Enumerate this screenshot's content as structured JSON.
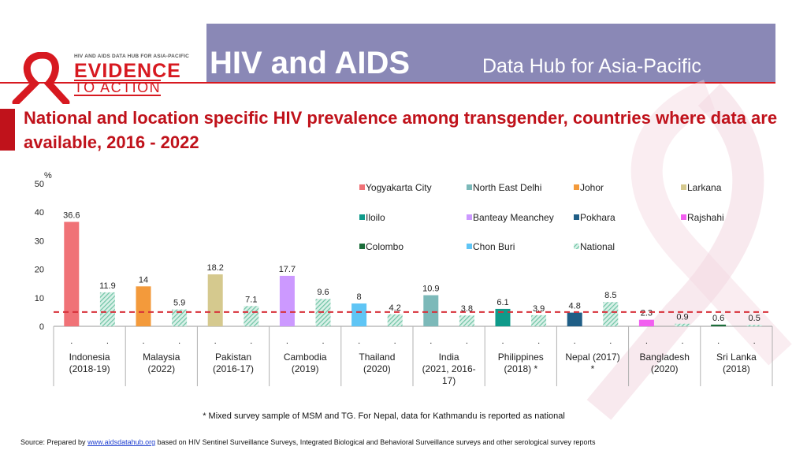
{
  "header": {
    "logo_top": "HIV AND AIDS DATA HUB FOR ASIA-PACIFIC",
    "logo_line1": "EVIDENCE",
    "logo_line2": "TO ACTION",
    "title": "HIV and AIDS",
    "subtitle": "Data Hub for Asia-Pacific"
  },
  "colors": {
    "brand_red": "#d71920",
    "header_bg": "#8a88b6",
    "national_dash_line": "#d7303a"
  },
  "chart_data": {
    "type": "bar",
    "title": "National and location specific HIV prevalence among transgender, countries where data are available, 2016 - 2022",
    "ylabel": "%",
    "ylim": [
      0,
      50
    ],
    "yticks": [
      0,
      10,
      20,
      30,
      40,
      50
    ],
    "grid": false,
    "legend_position": "top-right",
    "reference_line": 5,
    "groups": [
      {
        "label": "Indonesia (2018-19)",
        "bars": [
          {
            "series": "Yogyakarta City",
            "value": 36.6,
            "label": "36.6",
            "tick": "."
          },
          {
            "series": "National",
            "value": 11.9,
            "label": "11.9",
            "tick": "."
          }
        ]
      },
      {
        "label": "Malaysia (2022)",
        "bars": [
          {
            "series": "Johor",
            "value": 14,
            "label": "14",
            "tick": "."
          },
          {
            "series": "National",
            "value": 5.9,
            "label": "5.9",
            "tick": "."
          }
        ]
      },
      {
        "label": "Pakistan (2016-17)",
        "bars": [
          {
            "series": "Larkana",
            "value": 18.2,
            "label": "18.2",
            "tick": "."
          },
          {
            "series": "National",
            "value": 7.1,
            "label": "7.1",
            "tick": "."
          }
        ]
      },
      {
        "label": "Cambodia (2019)",
        "bars": [
          {
            "series": "Banteay Meanchey",
            "value": 17.7,
            "label": "17.7",
            "tick": "."
          },
          {
            "series": "National",
            "value": 9.6,
            "label": "9.6",
            "tick": "."
          }
        ]
      },
      {
        "label": "Thailand (2020)",
        "bars": [
          {
            "series": "Chon Buri",
            "value": 8,
            "label": "8",
            "tick": "."
          },
          {
            "series": "National",
            "value": 4.2,
            "label": "4.2",
            "tick": "."
          }
        ]
      },
      {
        "label": "India (2021, 2016-17)",
        "bars": [
          {
            "series": "North East Delhi",
            "value": 10.9,
            "label": "10.9",
            "tick": "."
          },
          {
            "series": "National",
            "value": 3.8,
            "label": "3.8",
            "tick": "."
          }
        ]
      },
      {
        "label": "Philippines (2018) *",
        "bars": [
          {
            "series": "Iloilo",
            "value": 6.1,
            "label": "6.1",
            "tick": "."
          },
          {
            "series": "National",
            "value": 3.9,
            "label": "3.9",
            "tick": "."
          }
        ]
      },
      {
        "label": "Nepal (2017) *",
        "bars": [
          {
            "series": "Pokhara",
            "value": 4.8,
            "label": "4.8",
            "tick": "."
          },
          {
            "series": "National",
            "value": 8.5,
            "label": "8.5",
            "tick": "."
          }
        ]
      },
      {
        "label": "Bangladesh (2020)",
        "bars": [
          {
            "series": "Rajshahi",
            "value": 2.3,
            "label": "2.3",
            "tick": "."
          },
          {
            "series": "National",
            "value": 0.9,
            "label": "0.9",
            "tick": "."
          }
        ]
      },
      {
        "label": "Sri Lanka (2018)",
        "bars": [
          {
            "series": "Colombo",
            "value": 0.6,
            "label": "0.6",
            "tick": "."
          },
          {
            "series": "National",
            "value": 0.5,
            "label": "0.5",
            "tick": "."
          }
        ]
      }
    ],
    "series": [
      {
        "name": "Yogyakarta City",
        "color": "#f07277"
      },
      {
        "name": "North East Delhi",
        "color": "#7cb9b9"
      },
      {
        "name": "Johor",
        "color": "#f39a3b"
      },
      {
        "name": "Larkana",
        "color": "#d5c98e"
      },
      {
        "name": "Iloilo",
        "color": "#0f9a8a"
      },
      {
        "name": "Banteay Meanchey",
        "color": "#cc99ff"
      },
      {
        "name": "Pokhara",
        "color": "#1f5e86"
      },
      {
        "name": "Rajshahi",
        "color": "#f25ff0"
      },
      {
        "name": "Colombo",
        "color": "#1b6d3a"
      },
      {
        "name": "Chon Buri",
        "color": "#5fc5f5"
      },
      {
        "name": "National",
        "color": "#6dc3a4",
        "pattern": "hatched"
      }
    ]
  },
  "footnote": "* Mixed survey sample of MSM and TG. For Nepal, data for Kathmandu is reported as national",
  "source": {
    "prefix": "Source: Prepared by",
    "link": "www.aidsdatahub.org",
    "suffix": "based on HIV Sentinel Surveillance Surveys, Integrated Biological and Behavioral Surveillance surveys and other serological survey reports"
  }
}
